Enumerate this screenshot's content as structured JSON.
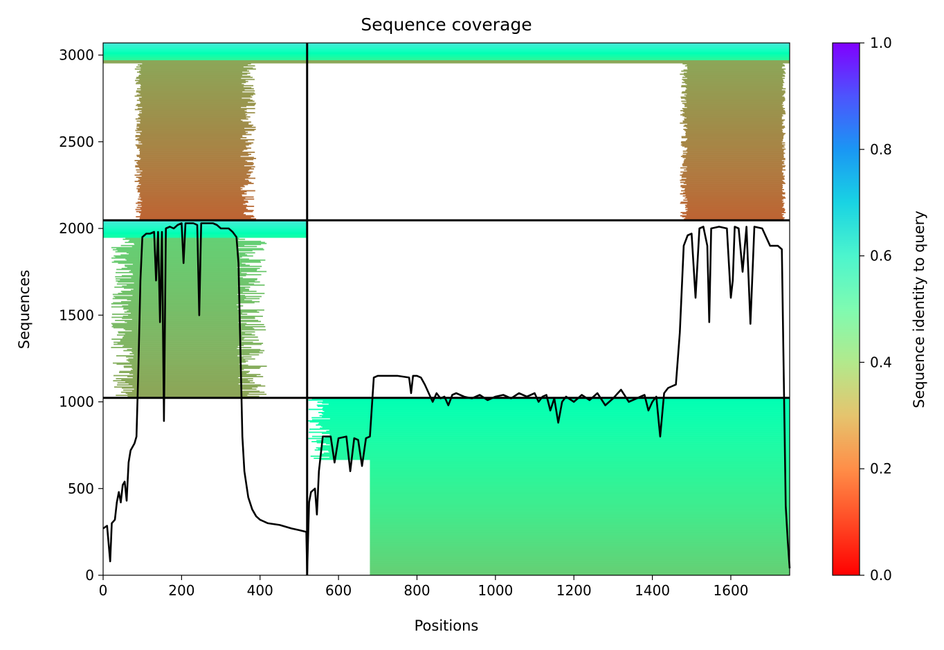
{
  "chart_data": {
    "type": "heatmap",
    "title": "Sequence coverage",
    "xlabel": "Positions",
    "ylabel": "Sequences",
    "xlim": [
      0,
      1750
    ],
    "ylim": [
      0,
      3070
    ],
    "xticks": [
      0,
      200,
      400,
      600,
      800,
      1000,
      1200,
      1400,
      1600
    ],
    "yticks": [
      0,
      500,
      1000,
      1500,
      2000,
      2500,
      3000
    ],
    "colorbar": {
      "label": "Sequence identity to query",
      "range": [
        0.0,
        1.0
      ],
      "ticks": [
        "0.0",
        "0.2",
        "0.4",
        "0.6",
        "0.8",
        "1.0"
      ],
      "colormap": "rainbow_r"
    },
    "grid": false,
    "block_boundaries": {
      "x": [
        520
      ],
      "y": [
        1023,
        2047
      ]
    },
    "coverage_blocks": [
      {
        "x": [
          0,
          520
        ],
        "y": [
          2047,
          3070
        ],
        "identity_range": [
          0.1,
          0.65
        ]
      },
      {
        "x": [
          520,
          1750
        ],
        "y": [
          2047,
          3070
        ],
        "identity_range": [
          0.1,
          0.65
        ]
      },
      {
        "x": [
          0,
          520
        ],
        "y": [
          1023,
          2047
        ],
        "identity_range": [
          0.2,
          0.65
        ]
      },
      {
        "x": [
          520,
          1750
        ],
        "y": [
          0,
          1023
        ],
        "identity_range": [
          0.3,
          0.5
        ]
      }
    ],
    "coverage_line": {
      "color": "#000000",
      "points": [
        [
          0,
          270
        ],
        [
          10,
          285
        ],
        [
          18,
          80
        ],
        [
          22,
          300
        ],
        [
          30,
          320
        ],
        [
          35,
          420
        ],
        [
          40,
          480
        ],
        [
          45,
          420
        ],
        [
          50,
          520
        ],
        [
          55,
          540
        ],
        [
          60,
          430
        ],
        [
          65,
          650
        ],
        [
          70,
          720
        ],
        [
          80,
          760
        ],
        [
          85,
          800
        ],
        [
          90,
          1200
        ],
        [
          95,
          1700
        ],
        [
          100,
          1950
        ],
        [
          110,
          1970
        ],
        [
          120,
          1970
        ],
        [
          130,
          1980
        ],
        [
          135,
          1700
        ],
        [
          140,
          1980
        ],
        [
          145,
          1460
        ],
        [
          150,
          1980
        ],
        [
          155,
          890
        ],
        [
          160,
          2000
        ],
        [
          170,
          2010
        ],
        [
          180,
          2000
        ],
        [
          190,
          2020
        ],
        [
          200,
          2030
        ],
        [
          205,
          1800
        ],
        [
          210,
          2030
        ],
        [
          220,
          2030
        ],
        [
          230,
          2030
        ],
        [
          240,
          2020
        ],
        [
          245,
          1500
        ],
        [
          250,
          2030
        ],
        [
          260,
          2030
        ],
        [
          270,
          2030
        ],
        [
          280,
          2030
        ],
        [
          290,
          2020
        ],
        [
          300,
          2000
        ],
        [
          320,
          2000
        ],
        [
          330,
          1980
        ],
        [
          340,
          1950
        ],
        [
          345,
          1800
        ],
        [
          350,
          1300
        ],
        [
          355,
          800
        ],
        [
          360,
          600
        ],
        [
          370,
          450
        ],
        [
          380,
          380
        ],
        [
          390,
          340
        ],
        [
          400,
          320
        ],
        [
          420,
          300
        ],
        [
          450,
          290
        ],
        [
          480,
          270
        ],
        [
          500,
          260
        ],
        [
          518,
          250
        ],
        [
          520,
          20
        ],
        [
          525,
          420
        ],
        [
          530,
          480
        ],
        [
          540,
          500
        ],
        [
          545,
          350
        ],
        [
          550,
          600
        ],
        [
          560,
          800
        ],
        [
          580,
          800
        ],
        [
          590,
          650
        ],
        [
          600,
          790
        ],
        [
          620,
          800
        ],
        [
          630,
          600
        ],
        [
          640,
          790
        ],
        [
          650,
          780
        ],
        [
          660,
          630
        ],
        [
          670,
          790
        ],
        [
          680,
          800
        ],
        [
          690,
          1140
        ],
        [
          700,
          1150
        ],
        [
          750,
          1150
        ],
        [
          780,
          1140
        ],
        [
          785,
          1050
        ],
        [
          790,
          1150
        ],
        [
          800,
          1150
        ],
        [
          810,
          1140
        ],
        [
          820,
          1100
        ],
        [
          830,
          1050
        ],
        [
          840,
          1000
        ],
        [
          850,
          1050
        ],
        [
          860,
          1020
        ],
        [
          870,
          1030
        ],
        [
          880,
          980
        ],
        [
          890,
          1040
        ],
        [
          900,
          1050
        ],
        [
          920,
          1030
        ],
        [
          940,
          1020
        ],
        [
          960,
          1040
        ],
        [
          980,
          1010
        ],
        [
          1000,
          1030
        ],
        [
          1020,
          1040
        ],
        [
          1040,
          1020
        ],
        [
          1060,
          1050
        ],
        [
          1080,
          1030
        ],
        [
          1100,
          1050
        ],
        [
          1110,
          1000
        ],
        [
          1120,
          1030
        ],
        [
          1130,
          1040
        ],
        [
          1140,
          950
        ],
        [
          1150,
          1020
        ],
        [
          1160,
          880
        ],
        [
          1170,
          1000
        ],
        [
          1180,
          1030
        ],
        [
          1200,
          1000
        ],
        [
          1220,
          1040
        ],
        [
          1240,
          1010
        ],
        [
          1260,
          1050
        ],
        [
          1280,
          980
        ],
        [
          1300,
          1020
        ],
        [
          1320,
          1070
        ],
        [
          1340,
          1000
        ],
        [
          1360,
          1020
        ],
        [
          1380,
          1040
        ],
        [
          1390,
          950
        ],
        [
          1400,
          1000
        ],
        [
          1410,
          1030
        ],
        [
          1420,
          800
        ],
        [
          1430,
          1050
        ],
        [
          1440,
          1080
        ],
        [
          1450,
          1090
        ],
        [
          1460,
          1100
        ],
        [
          1470,
          1400
        ],
        [
          1480,
          1900
        ],
        [
          1490,
          1960
        ],
        [
          1500,
          1970
        ],
        [
          1510,
          1600
        ],
        [
          1520,
          2000
        ],
        [
          1530,
          2010
        ],
        [
          1540,
          1900
        ],
        [
          1545,
          1460
        ],
        [
          1550,
          2000
        ],
        [
          1570,
          2010
        ],
        [
          1590,
          2000
        ],
        [
          1600,
          1600
        ],
        [
          1605,
          1700
        ],
        [
          1610,
          2010
        ],
        [
          1620,
          2000
        ],
        [
          1630,
          1750
        ],
        [
          1640,
          2010
        ],
        [
          1650,
          1450
        ],
        [
          1660,
          2010
        ],
        [
          1680,
          2000
        ],
        [
          1700,
          1900
        ],
        [
          1720,
          1900
        ],
        [
          1730,
          1880
        ],
        [
          1740,
          400
        ],
        [
          1745,
          200
        ],
        [
          1750,
          40
        ]
      ]
    }
  }
}
